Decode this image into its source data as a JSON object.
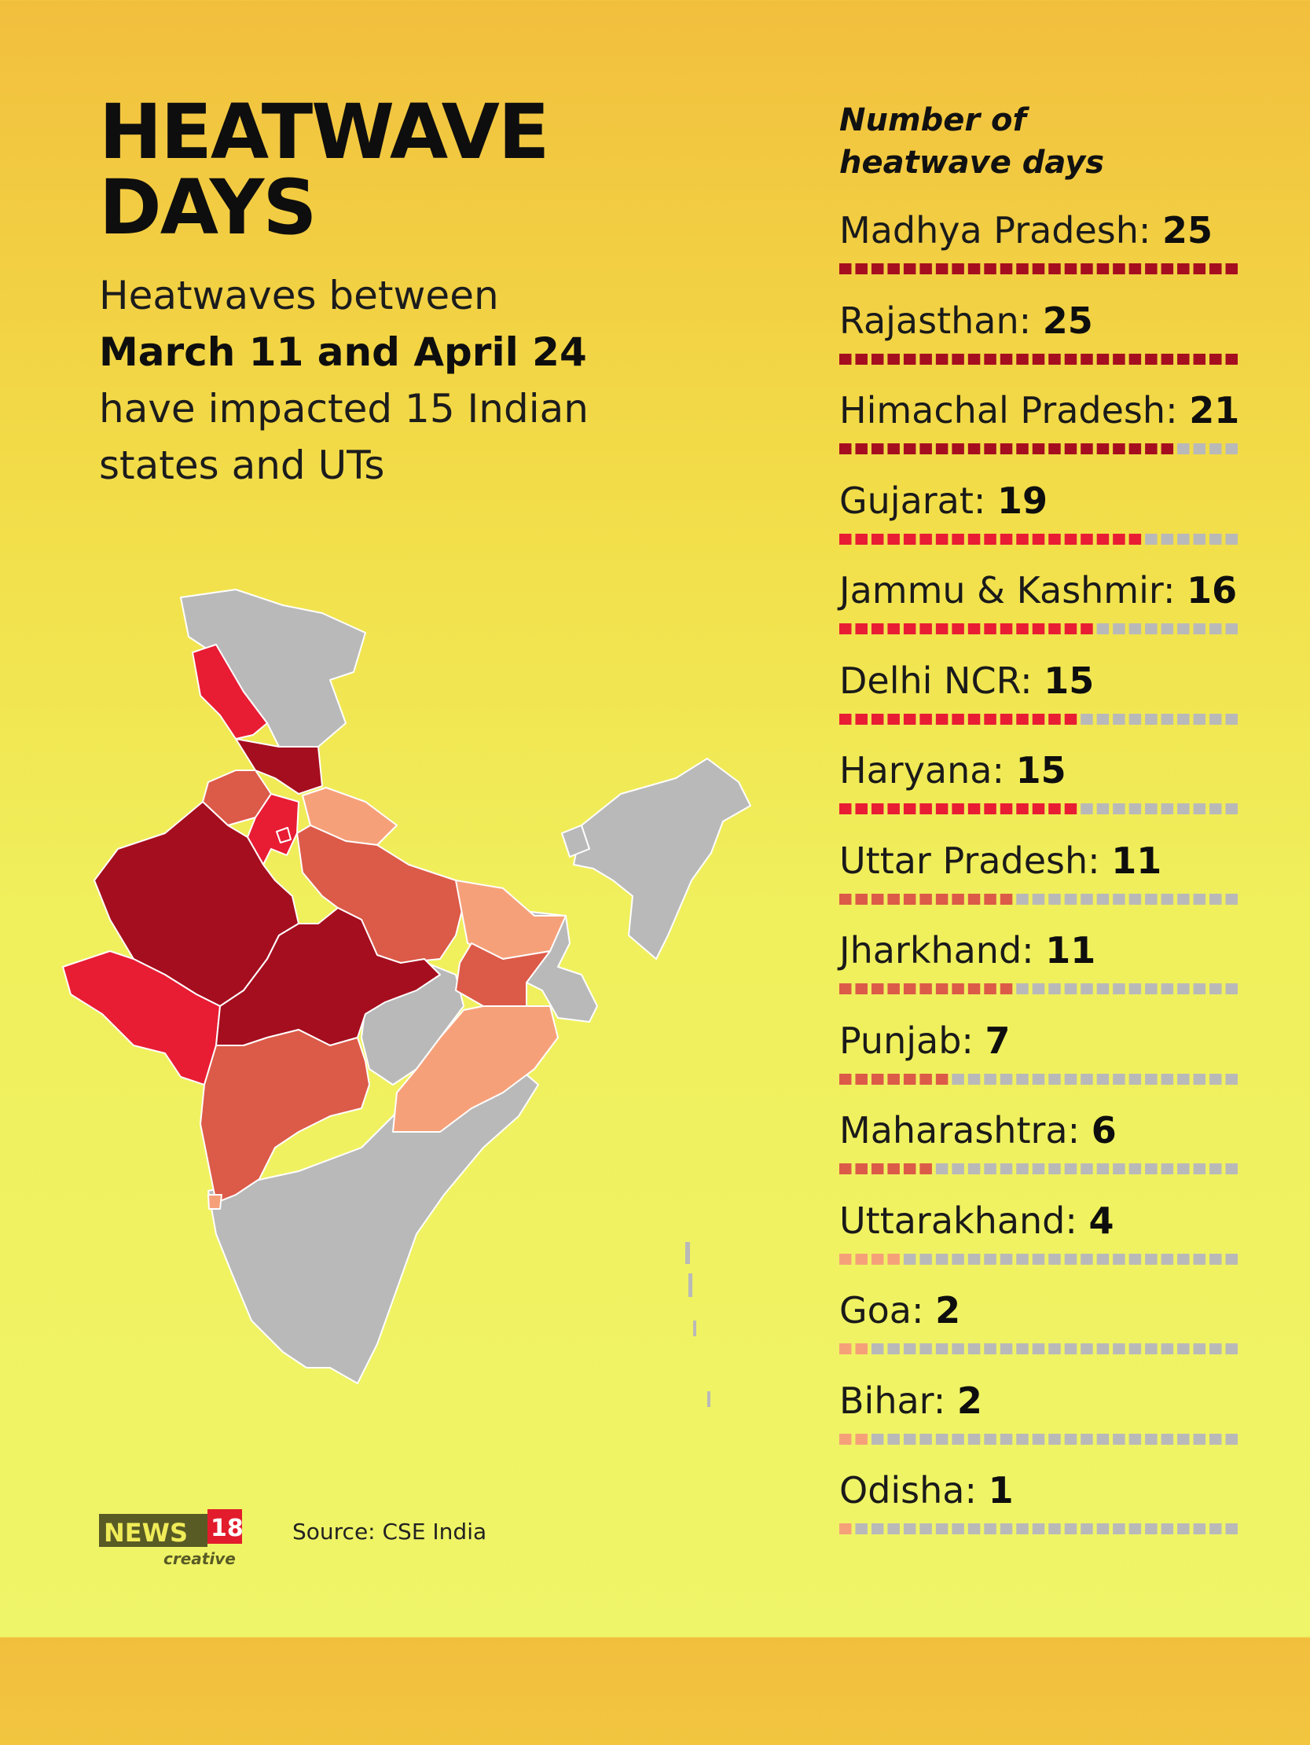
{
  "headline": {
    "line1": "HEATWAVE",
    "line2": "DAYS"
  },
  "subtitle": {
    "line1": "Heatwaves between",
    "line2": "March 11 and April 24",
    "line3": "have impacted 15 Indian",
    "line4": "states and UTs"
  },
  "legend_title": {
    "line1": "Number of",
    "line2": "heatwave days"
  },
  "max_days": 25,
  "states": [
    {
      "name": "Madhya Pradesh",
      "value": "25",
      "days": 25,
      "color": "#a50e1e"
    },
    {
      "name": "Rajasthan",
      "value": "25",
      "days": 25,
      "color": "#a50e1e"
    },
    {
      "name": "Himachal Pradesh",
      "value": "21",
      "days": 21,
      "color": "#a50e1e"
    },
    {
      "name": "Gujarat",
      "value": "19",
      "days": 19,
      "color": "#e81c33"
    },
    {
      "name": "Jammu & Kashmir",
      "value": "16",
      "days": 16,
      "color": "#e81c33"
    },
    {
      "name": "Delhi NCR",
      "value": "15",
      "days": 15,
      "color": "#e81c33"
    },
    {
      "name": "Haryana",
      "value": "15",
      "days": 15,
      "color": "#e81c33"
    },
    {
      "name": "Uttar Pradesh",
      "value": "11",
      "days": 11,
      "color": "#dc5a48"
    },
    {
      "name": "Jharkhand",
      "value": "11",
      "days": 11,
      "color": "#dc5a48"
    },
    {
      "name": "Punjab",
      "value": "7",
      "days": 7,
      "color": "#dc5a48"
    },
    {
      "name": "Maharashtra",
      "value": "6",
      "days": 6,
      "color": "#dc5a48"
    },
    {
      "name": "Uttarakhand",
      "value": "4",
      "days": 4,
      "color": "#f6a07a"
    },
    {
      "name": "Goa",
      "value": "2",
      "days": 2,
      "color": "#f6a07a"
    },
    {
      "name": "Bihar",
      "value": "2",
      "days": 2,
      "color": "#f6a07a"
    },
    {
      "name": "Odisha",
      "value": "1",
      "days": 1,
      "color": "#f6a07a"
    }
  ],
  "colors": {
    "empty": "#b9b9b9",
    "no_data": "#b9b9b9",
    "level_high": "#a50e1e",
    "level_mid_high": "#e81c33",
    "level_mid": "#dc5a48",
    "level_low": "#f6a07a"
  },
  "logo": {
    "brand": "NEWS",
    "number": "18",
    "tagline": "creative"
  },
  "source": "Source: CSE India"
}
